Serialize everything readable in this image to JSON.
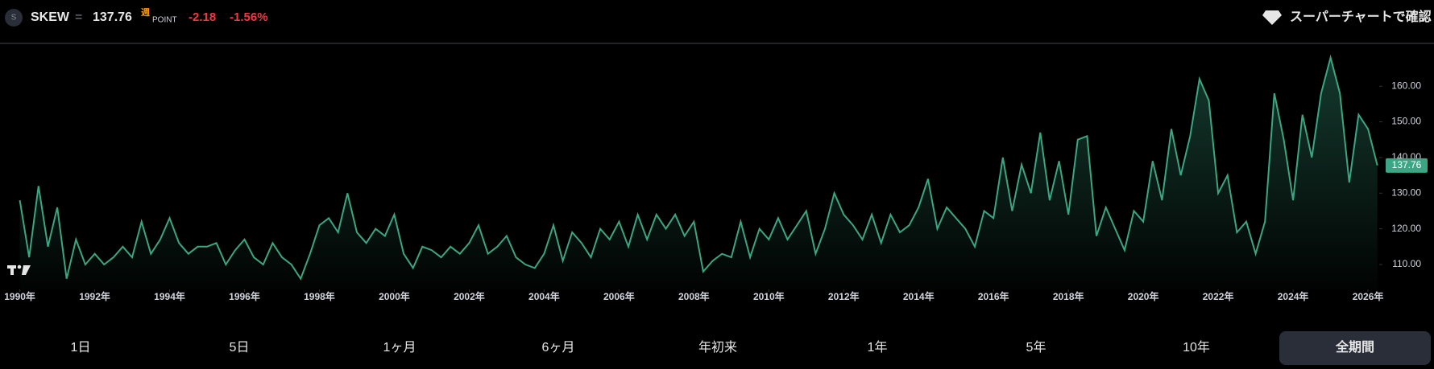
{
  "header": {
    "icon_letter": "S",
    "symbol": "SKEW",
    "equals": "=",
    "price": "137.76",
    "period_badge": "週",
    "unit": "POINT",
    "change": "-2.18",
    "change_percent": "-1.56%",
    "super_chart_link": "スーパーチャートで確認"
  },
  "chart_data": {
    "type": "area",
    "color": "#3aa684",
    "grid": false,
    "x": [
      1990,
      1990.25,
      1990.5,
      1990.75,
      1991,
      1991.25,
      1991.5,
      1991.75,
      1992,
      1992.25,
      1992.5,
      1992.75,
      1993,
      1993.25,
      1993.5,
      1993.75,
      1994,
      1994.25,
      1994.5,
      1994.75,
      1995,
      1995.25,
      1995.5,
      1995.75,
      1996,
      1996.25,
      1996.5,
      1996.75,
      1997,
      1997.25,
      1997.5,
      1997.75,
      1998,
      1998.25,
      1998.5,
      1998.75,
      1999,
      1999.25,
      1999.5,
      1999.75,
      2000,
      2000.25,
      2000.5,
      2000.75,
      2001,
      2001.25,
      2001.5,
      2001.75,
      2002,
      2002.25,
      2002.5,
      2002.75,
      2003,
      2003.25,
      2003.5,
      2003.75,
      2004,
      2004.25,
      2004.5,
      2004.75,
      2005,
      2005.25,
      2005.5,
      2005.75,
      2006,
      2006.25,
      2006.5,
      2006.75,
      2007,
      2007.25,
      2007.5,
      2007.75,
      2008,
      2008.25,
      2008.5,
      2008.75,
      2009,
      2009.25,
      2009.5,
      2009.75,
      2010,
      2010.25,
      2010.5,
      2010.75,
      2011,
      2011.25,
      2011.5,
      2011.75,
      2012,
      2012.25,
      2012.5,
      2012.75,
      2013,
      2013.25,
      2013.5,
      2013.75,
      2014,
      2014.25,
      2014.5,
      2014.75,
      2015,
      2015.25,
      2015.5,
      2015.75,
      2016,
      2016.25,
      2016.5,
      2016.75,
      2017,
      2017.25,
      2017.5,
      2017.75,
      2018,
      2018.25,
      2018.5,
      2018.75,
      2019,
      2019.25,
      2019.5,
      2019.75,
      2020,
      2020.25,
      2020.5,
      2020.75,
      2021,
      2021.25,
      2021.5,
      2021.75,
      2022,
      2022.25,
      2022.5,
      2022.75,
      2023,
      2023.25,
      2023.5,
      2023.75,
      2024,
      2024.25,
      2024.5,
      2024.75,
      2025,
      2025.25,
      2025.5,
      2025.75,
      2026,
      2026.25
    ],
    "values": [
      128,
      112,
      132,
      115,
      126,
      106,
      117,
      110,
      113,
      110,
      112,
      115,
      112,
      122,
      113,
      117,
      123,
      116,
      113,
      115,
      115,
      116,
      110,
      114,
      117,
      112,
      110,
      116,
      112,
      110,
      106,
      113,
      121,
      123,
      119,
      130,
      119,
      116,
      120,
      118,
      124,
      113,
      109,
      115,
      114,
      112,
      115,
      113,
      116,
      121,
      113,
      115,
      118,
      112,
      110,
      109,
      113,
      121,
      111,
      119,
      116,
      112,
      120,
      117,
      122,
      115,
      124,
      117,
      124,
      120,
      124,
      118,
      122,
      108,
      111,
      113,
      112,
      122,
      112,
      120,
      117,
      123,
      117,
      121,
      125,
      113,
      120,
      130,
      124,
      121,
      117,
      124,
      116,
      124,
      119,
      121,
      126,
      134,
      120,
      126,
      123,
      120,
      115,
      125,
      123,
      140,
      125,
      138,
      130,
      147,
      128,
      139,
      124,
      145,
      146,
      118,
      126,
      120,
      114,
      125,
      122,
      139,
      128,
      148,
      135,
      146,
      162,
      156,
      130,
      135,
      119,
      122,
      113,
      122,
      158,
      145,
      128,
      152,
      140,
      158,
      168,
      158,
      133,
      152,
      148,
      137.76
    ],
    "xlim": [
      1989.6,
      2026.3
    ],
    "ylim": [
      103,
      172
    ],
    "xticks": [
      {
        "value": 1990,
        "label": "1990年"
      },
      {
        "value": 1992,
        "label": "1992年"
      },
      {
        "value": 1994,
        "label": "1994年"
      },
      {
        "value": 1996,
        "label": "1996年"
      },
      {
        "value": 1998,
        "label": "1998年"
      },
      {
        "value": 2000,
        "label": "2000年"
      },
      {
        "value": 2002,
        "label": "2002年"
      },
      {
        "value": 2004,
        "label": "2004年"
      },
      {
        "value": 2006,
        "label": "2006年"
      },
      {
        "value": 2008,
        "label": "2008年"
      },
      {
        "value": 2010,
        "label": "2010年"
      },
      {
        "value": 2012,
        "label": "2012年"
      },
      {
        "value": 2014,
        "label": "2014年"
      },
      {
        "value": 2016,
        "label": "2016年"
      },
      {
        "value": 2018,
        "label": "2018年"
      },
      {
        "value": 2020,
        "label": "2020年"
      },
      {
        "value": 2022,
        "label": "2022年"
      },
      {
        "value": 2024,
        "label": "2024年"
      },
      {
        "value": 2026,
        "label": "2026年"
      }
    ],
    "yticks": [
      {
        "value": 110,
        "label": "110.00"
      },
      {
        "value": 120,
        "label": "120.00"
      },
      {
        "value": 130,
        "label": "130.00"
      },
      {
        "value": 140,
        "label": "140.00"
      },
      {
        "value": 150,
        "label": "150.00"
      },
      {
        "value": 160,
        "label": "160.00"
      }
    ],
    "last_value_label": "137.76"
  },
  "range_buttons": [
    "1日",
    "5日",
    "1ヶ月",
    "6ヶ月",
    "年初来",
    "1年",
    "5年",
    "10年",
    "全期間"
  ],
  "selected_range": "全期間"
}
